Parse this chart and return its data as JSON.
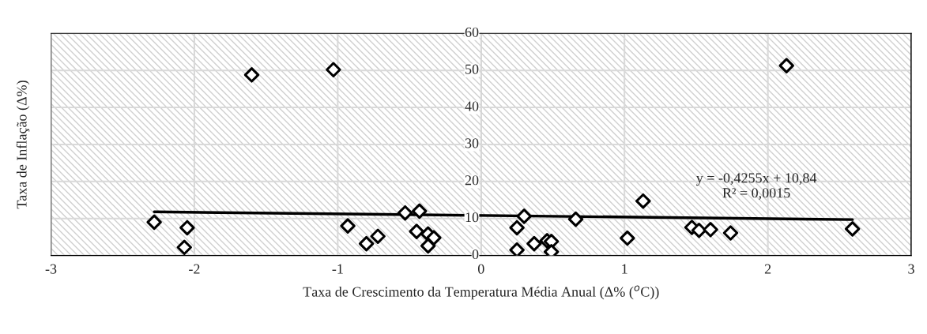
{
  "chart_data": {
    "type": "scatter",
    "xlabel": "Taxa de Crescimento da Temperatura Média Anual (Δ% ($^{o}$C))",
    "ylabel": "Taxa de Inflação (Δ%)",
    "xlim": [
      -3,
      3
    ],
    "xticks": [
      -3,
      -2,
      -1,
      0,
      1,
      2,
      3
    ],
    "ylim": [
      0,
      60
    ],
    "yticks": [
      0,
      10,
      20,
      30,
      40,
      50,
      60
    ],
    "grid": true,
    "legend": false,
    "series": [
      {
        "color": "#000000",
        "x": [
          -2.28,
          -2.05,
          -2.07,
          -1.6,
          -1.03,
          -0.93,
          -0.8,
          -0.72,
          -0.53,
          -0.43,
          -0.45,
          -0.37,
          -0.33,
          -0.37,
          0.25,
          0.25,
          0.3,
          0.37,
          0.46,
          0.49,
          0.49,
          0.66,
          1.02,
          1.13,
          1.47,
          1.52,
          1.6,
          1.74,
          2.13,
          2.59
        ],
        "marker": "diamond",
        "values": [
          9.0,
          7.5,
          2.2,
          48.8,
          50.2,
          8.0,
          3.2,
          5.2,
          11.5,
          12.0,
          6.5,
          5.8,
          4.8,
          2.6,
          7.5,
          1.5,
          10.6,
          3.2,
          4.0,
          3.8,
          1.0,
          9.8,
          4.7,
          14.7,
          7.6,
          6.8,
          7.0,
          6.1,
          51.3,
          7.2
        ]
      },
      {
        "type": "line",
        "color": "#000000",
        "x": [
          -2.28,
          2.59
        ],
        "values": [
          11.8,
          9.7
        ]
      }
    ],
    "annotations": [
      "y = -0,4255x + 10,84\nR² = 0,0015"
    ]
  }
}
